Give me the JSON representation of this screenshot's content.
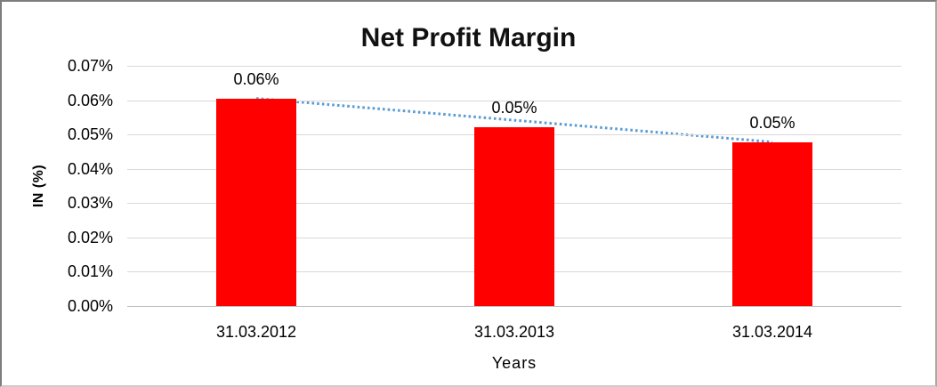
{
  "chart_data": {
    "type": "bar",
    "title": "Net Profit Margin",
    "xlabel": "Years",
    "ylabel": "IN (%)",
    "categories": [
      "31.03.2012",
      "31.03.2013",
      "31.03.2014"
    ],
    "values": [
      0.0605,
      0.0522,
      0.0478
    ],
    "data_labels": [
      "0.06%",
      "0.05%",
      "0.05%"
    ],
    "y_ticks": [
      "0.07%",
      "0.06%",
      "0.05%",
      "0.04%",
      "0.03%",
      "0.02%",
      "0.01%",
      "0.00%"
    ],
    "ylim": [
      0,
      0.07
    ],
    "grid": true,
    "legend": "none",
    "bar_color": "#ff0000",
    "gridline_color": "#d9d9d9",
    "axis_line_color": "#bfbfbf",
    "trendline": {
      "style": "dotted",
      "color": "#5b9bd5",
      "from_value": 0.0605,
      "to_value": 0.0478
    }
  }
}
